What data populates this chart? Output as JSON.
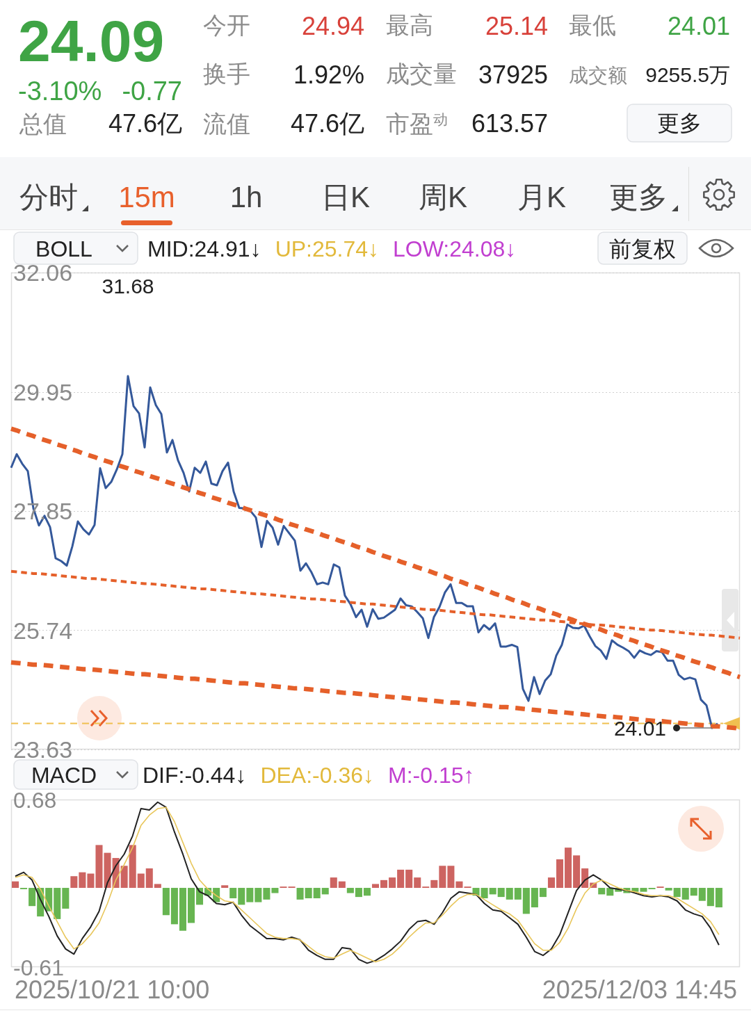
{
  "chart_data": [
    {
      "type": "other",
      "annotations": [
        "24.09",
        "-3.10%",
        "-0.77",
        "总值",
        "47.6亿",
        "今开",
        "24.94",
        "换手",
        "1.92%",
        "流值",
        "47.6亿",
        "最高",
        "25.14",
        "成交量",
        "37925",
        "市盈$^{动}$",
        "613.57",
        "最低",
        "24.01",
        "成交额",
        "9255.5万",
        "更多",
        "分时",
        "15m",
        "1h",
        "日K",
        "周K",
        "月K",
        "更多"
      ]
    },
    {
      "type": "line",
      "annotations": [
        "BOLL",
        "MID:24.91↓",
        "UP:25.74↓",
        "LOW:24.08↓",
        "前复权",
        "31.68",
        "24.01"
      ],
      "categories": [
        null,
        null,
        null,
        null,
        null,
        null,
        null,
        null,
        null,
        null,
        null,
        null,
        null,
        null,
        null,
        null,
        null,
        null,
        null,
        null,
        null,
        null,
        null,
        null,
        null,
        null,
        null,
        null,
        null,
        null,
        null,
        null,
        null,
        null,
        null,
        null,
        null,
        null,
        null,
        null,
        null,
        null,
        null,
        null,
        null,
        null,
        null,
        null,
        null,
        null,
        null,
        null,
        null,
        null,
        null,
        null,
        null,
        null,
        null,
        null,
        null,
        null,
        null,
        null,
        null,
        null,
        null,
        null,
        null,
        null,
        null,
        null,
        null,
        null,
        null,
        null,
        null,
        null,
        null,
        null,
        null,
        null,
        null,
        null,
        null,
        null,
        null,
        null,
        null,
        null,
        null,
        null,
        null,
        null,
        null,
        null,
        null,
        null,
        null,
        null,
        null,
        null,
        null,
        null,
        null,
        null,
        null,
        null,
        null,
        null,
        null,
        null,
        null,
        null,
        null,
        null,
        null,
        null,
        null,
        null,
        null,
        null,
        null,
        null,
        null,
        null,
        null,
        null,
        null,
        null,
        null,
        null
      ],
      "series": [
        {
          "color": "#34589a",
          "values": [
            28.61,
            28.85,
            28.68,
            28.55,
            27.89,
            27.59,
            27.76,
            27.56,
            27.01,
            26.96,
            26.88,
            27.22,
            27.66,
            27.52,
            27.43,
            27.6,
            28.6,
            28.25,
            28.36,
            28.58,
            28.85,
            30.23,
            29.7,
            29.57,
            28.97,
            30.03,
            29.72,
            29.56,
            28.88,
            29.1,
            28.74,
            28.52,
            28.19,
            28.61,
            28.52,
            28.72,
            28.33,
            28.3,
            28.55,
            28.7,
            28.19,
            27.9,
            27.89,
            27.85,
            27.73,
            27.21,
            27.67,
            27.55,
            27.25,
            27.58,
            27.45,
            27.32,
            26.79,
            26.92,
            26.76,
            26.55,
            26.58,
            26.55,
            26.9,
            26.85,
            26.35,
            26.2,
            25.97,
            26.1,
            25.8,
            26.11,
            25.94,
            25.96,
            26.03,
            26.1,
            26.3,
            26.18,
            26.16,
            26.06,
            25.95,
            25.6,
            25.97,
            26.15,
            26.41,
            26.55,
            26.22,
            26.22,
            26.16,
            26.16,
            25.7,
            25.83,
            25.75,
            25.86,
            25.45,
            25.45,
            25.48,
            25.44,
            24.7,
            24.49,
            24.91,
            24.61,
            24.85,
            24.96,
            25.29,
            25.48,
            25.84,
            25.78,
            25.77,
            25.82,
            25.63,
            25.46,
            25.38,
            25.23,
            25.56,
            25.48,
            25.43,
            25.37,
            25.25,
            25.38,
            25.33,
            25.3,
            25.37,
            25.35,
            25.2,
            25.2,
            24.95,
            24.87,
            24.9,
            24.87,
            24.51,
            24.41,
            24.01,
            24.09,
            null,
            null,
            null,
            null
          ]
        },
        {
          "color": "#e5602a",
          "line_style": "dashed",
          "values": [
            29.3,
            29.27,
            29.23,
            29.2,
            29.17,
            29.13,
            29.1,
            29.07,
            29.03,
            29.0,
            28.97,
            28.93,
            28.9,
            28.86,
            28.83,
            28.8,
            28.76,
            28.73,
            28.7,
            28.66,
            28.63,
            28.6,
            28.56,
            28.53,
            28.5,
            28.46,
            28.43,
            28.4,
            28.36,
            28.33,
            28.3,
            28.26,
            28.23,
            28.19,
            28.16,
            28.13,
            28.09,
            28.06,
            28.03,
            27.99,
            27.96,
            27.93,
            27.89,
            27.86,
            27.83,
            27.79,
            27.76,
            27.73,
            27.69,
            27.66,
            27.62,
            27.59,
            27.56,
            27.52,
            27.49,
            27.46,
            27.42,
            27.39,
            27.36,
            27.32,
            27.29,
            27.26,
            27.22,
            27.19,
            27.16,
            27.12,
            27.09,
            27.05,
            27.02,
            26.99,
            26.95,
            26.92,
            26.89,
            26.85,
            26.82,
            26.79,
            26.75,
            26.72,
            26.69,
            26.65,
            26.62,
            26.59,
            26.55,
            26.52,
            26.49,
            26.45,
            26.42,
            26.38,
            26.35,
            26.32,
            26.28,
            26.25,
            26.22,
            26.18,
            26.15,
            26.12,
            26.08,
            26.05,
            26.02,
            25.98,
            25.95,
            25.92,
            25.88,
            25.85,
            25.82,
            25.78,
            25.75,
            25.71,
            25.68,
            25.65,
            25.61,
            25.58,
            25.55,
            25.51,
            25.48,
            25.45,
            25.41,
            25.38,
            25.35,
            25.31,
            25.28,
            25.25,
            25.21,
            25.18,
            25.15,
            25.11,
            25.08,
            25.04,
            25.01,
            24.98,
            24.94,
            24.91
          ]
        },
        {
          "color": "#e5602a",
          "line_style": "dashed",
          "values": [
            26.78,
            26.77,
            26.76,
            26.75,
            26.74,
            26.74,
            26.73,
            26.72,
            26.71,
            26.7,
            26.69,
            26.68,
            26.67,
            26.66,
            26.65,
            26.65,
            26.64,
            26.63,
            26.62,
            26.61,
            26.6,
            26.59,
            26.58,
            26.57,
            26.56,
            26.56,
            26.55,
            26.54,
            26.53,
            26.52,
            26.51,
            26.5,
            26.49,
            26.48,
            26.47,
            26.47,
            26.46,
            26.45,
            26.44,
            26.43,
            26.42,
            26.41,
            26.4,
            26.39,
            26.38,
            26.38,
            26.37,
            26.36,
            26.35,
            26.34,
            26.33,
            26.32,
            26.31,
            26.3,
            26.29,
            26.29,
            26.28,
            26.27,
            26.26,
            26.25,
            26.24,
            26.23,
            26.22,
            26.21,
            26.2,
            26.2,
            26.19,
            26.18,
            26.17,
            26.16,
            26.15,
            26.14,
            26.13,
            26.12,
            26.11,
            26.1,
            26.1,
            26.09,
            26.08,
            26.07,
            26.06,
            26.05,
            26.04,
            26.03,
            26.02,
            26.01,
            26.01,
            26.0,
            25.99,
            25.98,
            25.97,
            25.96,
            25.95,
            25.94,
            25.93,
            25.92,
            25.92,
            25.91,
            25.9,
            25.89,
            25.88,
            25.87,
            25.86,
            25.85,
            25.84,
            25.83,
            25.83,
            25.82,
            25.81,
            25.8,
            25.79,
            25.78,
            25.77,
            25.76,
            25.75,
            25.74,
            25.74,
            25.73,
            25.72,
            25.71,
            25.7,
            25.69,
            25.68,
            25.67,
            25.66,
            25.65,
            25.65,
            25.64,
            25.63,
            25.62,
            25.61,
            25.6
          ]
        },
        {
          "color": "#e5602a",
          "line_style": "dashed",
          "values": [
            25.17,
            25.16,
            25.15,
            25.14,
            25.13,
            25.13,
            25.12,
            25.11,
            25.1,
            25.09,
            25.08,
            25.07,
            25.06,
            25.05,
            25.05,
            25.04,
            25.03,
            25.02,
            25.01,
            25.0,
            24.99,
            24.98,
            24.97,
            24.96,
            24.96,
            24.95,
            24.94,
            24.93,
            24.92,
            24.91,
            24.9,
            24.89,
            24.88,
            24.88,
            24.87,
            24.86,
            24.85,
            24.84,
            24.83,
            24.82,
            24.81,
            24.8,
            24.8,
            24.79,
            24.78,
            24.77,
            24.76,
            24.75,
            24.74,
            24.73,
            24.72,
            24.71,
            24.71,
            24.7,
            24.69,
            24.68,
            24.67,
            24.66,
            24.65,
            24.64,
            24.63,
            24.63,
            24.62,
            24.61,
            24.6,
            24.59,
            24.58,
            24.57,
            24.56,
            24.55,
            24.55,
            24.54,
            24.53,
            24.52,
            24.51,
            24.5,
            24.49,
            24.48,
            24.47,
            24.46,
            24.46,
            24.45,
            24.44,
            24.43,
            24.42,
            24.41,
            24.4,
            24.39,
            24.38,
            24.38,
            24.37,
            24.36,
            24.35,
            24.34,
            24.33,
            24.32,
            24.31,
            24.3,
            24.29,
            24.29,
            24.28,
            24.27,
            24.26,
            24.25,
            24.24,
            24.23,
            24.22,
            24.21,
            24.21,
            24.2,
            24.19,
            24.18,
            24.17,
            24.16,
            24.15,
            24.14,
            24.13,
            24.13,
            24.12,
            24.11,
            24.1,
            24.09,
            24.08,
            24.07,
            24.06,
            24.05,
            24.04,
            24.04,
            24.03,
            24.02,
            24.01,
            24.0
          ]
        }
      ],
      "ylim": [
        23.63,
        32.06
      ],
      "yticks": [
        23.63,
        25.74,
        27.85,
        29.95,
        32.06
      ],
      "grid": "y",
      "tick_labels": "y",
      "ref_lines": [
        {
          "axis": "y",
          "value": 24.09,
          "color": "#f0c050",
          "line_style": "dashed"
        }
      ]
    },
    {
      "type": "bar",
      "annotations": [
        "MACD",
        "DIF:-0.44↓",
        "DEA:-0.36↓",
        "M:-0.15↑",
        "2025/10/21 10:00",
        "2025/12/03 14:45"
      ],
      "categories": [
        null,
        null,
        null,
        null,
        null,
        null,
        null,
        null,
        null,
        null,
        null,
        null,
        null,
        null,
        null,
        null,
        null,
        null,
        null,
        null,
        null,
        null,
        null,
        null,
        null,
        null,
        null,
        null,
        null,
        null,
        null,
        null,
        null,
        null,
        null,
        null,
        null,
        null,
        null,
        null,
        null,
        null,
        null,
        null,
        null,
        null,
        null,
        null,
        null,
        null,
        null,
        null,
        null,
        null,
        null,
        null,
        null,
        null,
        null,
        null,
        null,
        null,
        null,
        null,
        null,
        null,
        null,
        null,
        null,
        null,
        null,
        null,
        null,
        null,
        null,
        null,
        null,
        null,
        null,
        null,
        null,
        null,
        null,
        null,
        null,
        null,
        null
      ],
      "series": [
        {
          "type": "bar",
          "values": [
            0.05,
            -0.01,
            -0.14,
            -0.22,
            -0.18,
            -0.24,
            -0.16,
            0.09,
            0.12,
            0.11,
            0.33,
            0.27,
            0.23,
            0.17,
            0.33,
            0.11,
            0.15,
            0.03,
            -0.21,
            -0.28,
            -0.33,
            -0.27,
            -0.13,
            -0.06,
            -0.11,
            0.02,
            -0.08,
            -0.13,
            -0.11,
            -0.11,
            -0.09,
            -0.04,
            0.01,
            0.01,
            -0.09,
            -0.08,
            -0.08,
            -0.05,
            0.08,
            0.05,
            -0.04,
            -0.07,
            -0.06,
            0.03,
            0.06,
            0.08,
            0.14,
            0.14,
            0.08,
            0.01,
            0.06,
            0.17,
            0.17,
            0.05,
            0.01,
            -0.06,
            -0.08,
            -0.05,
            -0.07,
            -0.09,
            -0.09,
            -0.2,
            -0.15,
            -0.07,
            0.08,
            0.22,
            0.31,
            0.25,
            0.15,
            0.04,
            -0.05,
            -0.06,
            -0.03,
            -0.04,
            -0.03,
            -0.03,
            -0.01,
            0.01,
            -0.02,
            -0.07,
            -0.09,
            -0.06,
            -0.1,
            -0.14,
            -0.15,
            null,
            null
          ],
          "colors": [
            "#cd6461",
            "#67b551",
            "#67b551",
            "#67b551",
            "#67b551",
            "#67b551",
            "#67b551",
            "#cd6461",
            "#cd6461",
            "#cd6461",
            "#cd6461",
            "#cd6461",
            "#cd6461",
            "#cd6461",
            "#cd6461",
            "#cd6461",
            "#cd6461",
            "#cd6461",
            "#67b551",
            "#67b551",
            "#67b551",
            "#67b551",
            "#67b551",
            "#67b551",
            "#67b551",
            "#cd6461",
            "#67b551",
            "#67b551",
            "#67b551",
            "#67b551",
            "#67b551",
            "#67b551",
            "#cd6461",
            "#cd6461",
            "#67b551",
            "#67b551",
            "#67b551",
            "#67b551",
            "#cd6461",
            "#cd6461",
            "#67b551",
            "#67b551",
            "#67b551",
            "#cd6461",
            "#cd6461",
            "#cd6461",
            "#cd6461",
            "#cd6461",
            "#cd6461",
            "#cd6461",
            "#cd6461",
            "#cd6461",
            "#cd6461",
            "#cd6461",
            "#cd6461",
            "#67b551",
            "#67b551",
            "#67b551",
            "#67b551",
            "#67b551",
            "#67b551",
            "#67b551",
            "#67b551",
            "#67b551",
            "#cd6461",
            "#cd6461",
            "#cd6461",
            "#cd6461",
            "#cd6461",
            "#cd6461",
            "#67b551",
            "#67b551",
            "#67b551",
            "#67b551",
            "#67b551",
            "#67b551",
            "#67b551",
            "#cd6461",
            "#67b551",
            "#67b551",
            "#67b551",
            "#67b551",
            "#67b551",
            "#67b551",
            "#67b551",
            null,
            null
          ]
        },
        {
          "type": "line",
          "color": "#222222",
          "values": [
            0.09,
            0.12,
            0.06,
            -0.09,
            -0.22,
            -0.37,
            -0.47,
            -0.51,
            -0.39,
            -0.3,
            -0.18,
            0.04,
            0.17,
            0.26,
            0.4,
            0.61,
            0.6,
            0.66,
            0.62,
            0.43,
            0.26,
            0.07,
            -0.03,
            -0.06,
            -0.12,
            -0.13,
            -0.11,
            -0.21,
            -0.29,
            -0.34,
            -0.39,
            -0.39,
            -0.4,
            -0.38,
            -0.4,
            -0.48,
            -0.52,
            -0.55,
            -0.55,
            -0.46,
            -0.47,
            -0.55,
            -0.58,
            -0.56,
            -0.52,
            -0.47,
            -0.41,
            -0.32,
            -0.26,
            -0.25,
            -0.28,
            -0.19,
            -0.08,
            -0.03,
            -0.04,
            -0.05,
            -0.12,
            -0.17,
            -0.18,
            -0.23,
            -0.28,
            -0.38,
            -0.49,
            -0.52,
            -0.47,
            -0.36,
            -0.19,
            -0.02,
            0.06,
            0.1,
            0.06,
            0.0,
            -0.01,
            -0.02,
            -0.04,
            -0.06,
            -0.07,
            -0.06,
            -0.07,
            -0.1,
            -0.17,
            -0.2,
            -0.22,
            -0.31,
            -0.44,
            null,
            null
          ]
        },
        {
          "type": "line",
          "color": "#e8c65a",
          "values": [
            0.08,
            0.1,
            0.08,
            -0.01,
            -0.14,
            -0.26,
            -0.38,
            -0.47,
            -0.43,
            -0.36,
            -0.27,
            -0.12,
            0.06,
            0.18,
            0.31,
            0.48,
            0.56,
            0.61,
            0.62,
            0.51,
            0.35,
            0.19,
            0.06,
            -0.01,
            -0.06,
            -0.1,
            -0.11,
            -0.17,
            -0.23,
            -0.29,
            -0.35,
            -0.38,
            -0.39,
            -0.39,
            -0.4,
            -0.45,
            -0.5,
            -0.53,
            -0.54,
            -0.51,
            -0.48,
            -0.51,
            -0.54,
            -0.57,
            -0.55,
            -0.51,
            -0.45,
            -0.38,
            -0.32,
            -0.27,
            -0.27,
            -0.21,
            -0.14,
            -0.08,
            -0.05,
            -0.05,
            -0.09,
            -0.13,
            -0.17,
            -0.2,
            -0.25,
            -0.34,
            -0.43,
            -0.48,
            -0.48,
            -0.42,
            -0.31,
            -0.16,
            -0.04,
            0.03,
            0.06,
            0.03,
            0.0,
            -0.02,
            -0.03,
            -0.05,
            -0.06,
            -0.06,
            -0.06,
            -0.08,
            -0.12,
            -0.16,
            -0.2,
            -0.26,
            -0.36,
            null,
            null
          ]
        }
      ],
      "ylim": [
        -0.61,
        0.68
      ],
      "yticks": [
        -0.61,
        0.68
      ],
      "tick_labels": "y"
    }
  ]
}
